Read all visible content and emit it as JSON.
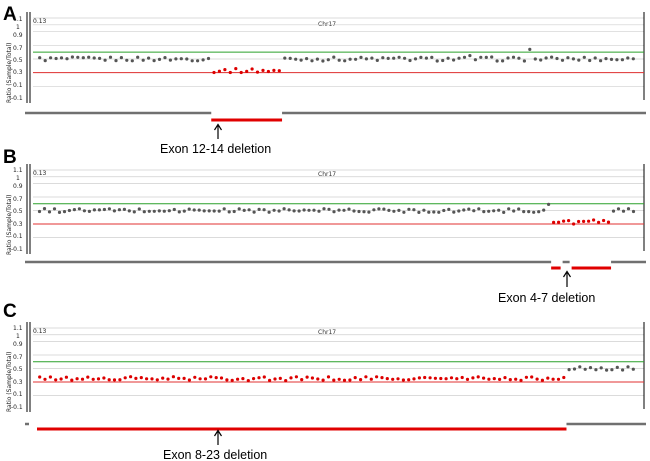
{
  "chart_data": [
    {
      "type": "scatter",
      "panel": "A",
      "chromosome": "Chr17",
      "corner_label": "0.13",
      "ylabel": "Ratio (Sample/Total)",
      "yticks": [
        "1.1",
        "1",
        "0.9",
        "0.7",
        "0.5",
        "0.3",
        "0.1",
        "-0.1"
      ],
      "ylim": [
        -0.1,
        1.1
      ],
      "reference_lines": {
        "upper": 0.6,
        "lower": 0.3
      },
      "points": 110,
      "deletion_probe_range": [
        32,
        44
      ],
      "normal_ratio": 0.5,
      "deleted_ratio": 0.33,
      "outliers": [
        [
          79,
          0.55
        ],
        [
          90,
          0.64
        ]
      ],
      "annotation": "Exon 12-14 deletion",
      "segment_colors": {
        "normal": "#707070",
        "deleted": "#e00000"
      }
    },
    {
      "type": "scatter",
      "panel": "B",
      "chromosome": "Chr17",
      "corner_label": "0.13",
      "ylabel": "Ratio (Sample/Total)",
      "yticks": [
        "1.1",
        "1",
        "0.9",
        "0.7",
        "0.5",
        "0.3",
        "0.1",
        "-0.1"
      ],
      "ylim": [
        -0.1,
        1.1
      ],
      "reference_lines": {
        "upper": 0.6,
        "lower": 0.3
      },
      "points": 120,
      "deletion_probe_range": [
        103,
        114
      ],
      "normal_ratio": 0.5,
      "deleted_ratio": 0.33,
      "outliers": [
        [
          102,
          0.59
        ]
      ],
      "annotation": "Exon 4-7 deletion",
      "segment_colors": {
        "normal": "#707070",
        "deleted": "#e00000"
      }
    },
    {
      "type": "scatter",
      "panel": "C",
      "chromosome": "Chr17",
      "corner_label": "0.13",
      "ylabel": "Ratio (Sample/Total)",
      "yticks": [
        "1.1",
        "1",
        "0.9",
        "0.7",
        "0.5",
        "0.3",
        "0.1",
        "-0.1"
      ],
      "ylim": [
        -0.1,
        1.1
      ],
      "reference_lines": {
        "upper": 0.6,
        "lower": 0.3
      },
      "points": 112,
      "deletion_probe_range": [
        0,
        98
      ],
      "normal_ratio": 0.5,
      "deleted_ratio": 0.35,
      "outliers": [],
      "annotation": "Exon 8-23 deletion",
      "segment_colors": {
        "normal": "#707070",
        "deleted": "#e00000"
      }
    }
  ],
  "colors": {
    "grid": "#cfcfcf",
    "upper_line": "#2aa02a",
    "lower_line": "#e03030",
    "point_normal": "#555555",
    "point_deleted": "#dd0000"
  }
}
